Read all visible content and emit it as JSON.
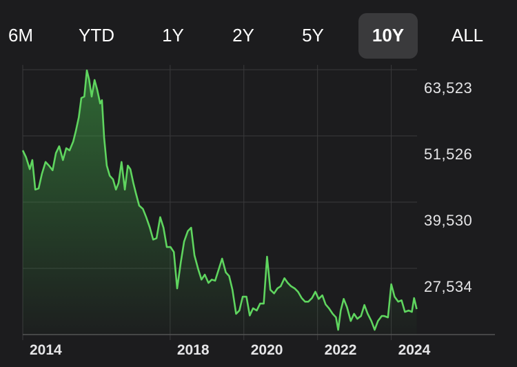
{
  "range_tabs": [
    "6M",
    "YTD",
    "1Y",
    "2Y",
    "5Y",
    "10Y",
    "ALL"
  ],
  "chart_data": {
    "type": "line",
    "x": [
      2014.0,
      2014.09,
      2014.19,
      2014.26,
      2014.34,
      2014.43,
      2014.52,
      2014.62,
      2014.71,
      2014.81,
      2014.9,
      2014.99,
      2015.09,
      2015.18,
      2015.27,
      2015.37,
      2015.44,
      2015.52,
      2015.59,
      2015.67,
      2015.74,
      2015.8,
      2015.87,
      2015.95,
      2016.02,
      2016.1,
      2016.15,
      2016.21,
      2016.28,
      2016.36,
      2016.45,
      2016.53,
      2016.6,
      2016.68,
      2016.77,
      2016.85,
      2016.92,
      2017.0,
      2017.07,
      2017.16,
      2017.26,
      2017.35,
      2017.45,
      2017.54,
      2017.63,
      2017.73,
      2017.82,
      2017.91,
      2018.01,
      2018.1,
      2018.19,
      2018.29,
      2018.38,
      2018.48,
      2018.57,
      2018.66,
      2018.76,
      2018.85,
      2018.94,
      2019.04,
      2019.13,
      2019.22,
      2019.32,
      2019.41,
      2019.51,
      2019.6,
      2019.69,
      2019.79,
      2019.88,
      2019.97,
      2020.07,
      2020.16,
      2020.25,
      2020.35,
      2020.44,
      2020.54,
      2020.63,
      2020.72,
      2020.82,
      2020.91,
      2021.0,
      2021.1,
      2021.19,
      2021.28,
      2021.38,
      2021.47,
      2021.57,
      2021.66,
      2021.75,
      2021.85,
      2021.94,
      2022.03,
      2022.13,
      2022.22,
      2022.31,
      2022.41,
      2022.5,
      2022.56,
      2022.63,
      2022.71,
      2022.8,
      2022.9,
      2022.99,
      2023.08,
      2023.18,
      2023.27,
      2023.36,
      2023.46,
      2023.55,
      2023.64,
      2023.74,
      2023.81,
      2023.91,
      2024.0,
      2024.09,
      2024.19,
      2024.28,
      2024.37,
      2024.47,
      2024.56,
      2024.62,
      2024.69
    ],
    "series": [
      {
        "color": "#5fd55f",
        "values": [
          48900,
          47650,
          45500,
          47150,
          41800,
          42000,
          44650,
          46800,
          46150,
          45300,
          48400,
          49650,
          47150,
          49300,
          48900,
          50500,
          52400,
          54900,
          58400,
          58650,
          63400,
          61750,
          58650,
          61650,
          59900,
          57400,
          58000,
          51150,
          46150,
          44300,
          43650,
          41800,
          43000,
          46800,
          41800,
          46150,
          45500,
          43000,
          41150,
          38900,
          38300,
          36800,
          34900,
          32750,
          33000,
          36800,
          34900,
          31400,
          31400,
          30500,
          23900,
          28650,
          32400,
          34300,
          34900,
          29900,
          27400,
          25500,
          26400,
          24900,
          25500,
          25300,
          27400,
          29300,
          26800,
          26150,
          23650,
          19300,
          19900,
          22400,
          22400,
          19000,
          20300,
          19900,
          21150,
          21150,
          29650,
          23650,
          23000,
          23900,
          24300,
          25750,
          24900,
          24300,
          23900,
          23300,
          22150,
          21500,
          21500,
          22150,
          23300,
          22000,
          22650,
          21000,
          20300,
          19300,
          18650,
          16400,
          19900,
          22000,
          20500,
          18000,
          19300,
          18400,
          18900,
          20900,
          19300,
          18000,
          16400,
          18000,
          18900,
          18900,
          18650,
          24650,
          22400,
          21500,
          21750,
          19650,
          19900,
          19650,
          22150,
          20150
        ]
      }
    ],
    "xlim": [
      2014,
      2024.7
    ],
    "xticks": [
      2014,
      2018,
      2020,
      2022,
      2024
    ],
    "ylim": [
      15538,
      65000
    ],
    "yticks": [
      {
        "value": 27534,
        "label": "27,534"
      },
      {
        "value": 39530,
        "label": "39,530"
      },
      {
        "value": 51526,
        "label": "51,526"
      },
      {
        "value": 63523,
        "label": "63,523"
      }
    ],
    "grid": true
  }
}
